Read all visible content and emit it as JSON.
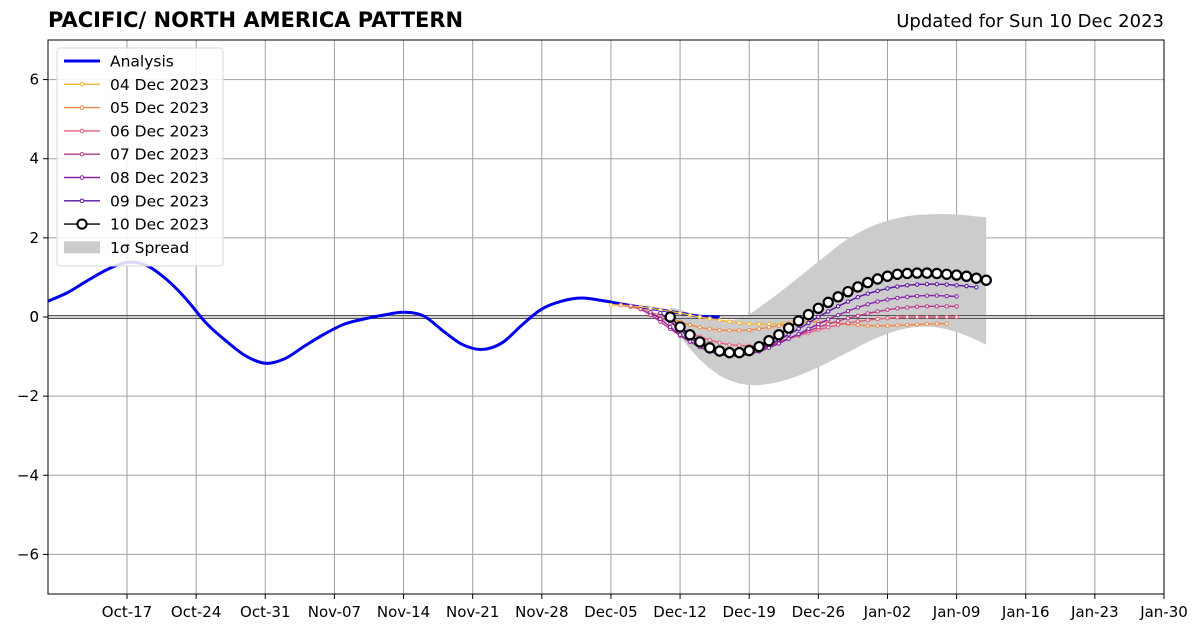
{
  "title": "PACIFIC/ NORTH AMERICA PATTERN",
  "updated": "Updated for Sun 10 Dec 2023",
  "chart_data": {
    "type": "line",
    "title": "PACIFIC/ NORTH AMERICA PATTERN",
    "subtitle": "Updated for Sun 10 Dec 2023",
    "xlabel": "",
    "ylabel": "",
    "xlim": [
      "2023-10-09",
      "2024-01-30"
    ],
    "ylim": [
      -7,
      7
    ],
    "x_ticks": [
      "Oct-17",
      "Oct-24",
      "Oct-31",
      "Nov-07",
      "Nov-14",
      "Nov-21",
      "Nov-28",
      "Dec-05",
      "Dec-12",
      "Dec-19",
      "Dec-26",
      "Jan-02",
      "Jan-09",
      "Jan-16",
      "Jan-23",
      "Jan-30"
    ],
    "y_ticks": [
      6,
      4,
      2,
      0,
      -2,
      -4,
      -6
    ],
    "y_tick_labels": [
      "6",
      "4",
      "2",
      "0",
      "−2",
      "−4",
      "−6"
    ],
    "grid": true,
    "legend_position": "top-left",
    "colors": {
      "analysis": "#0000ee",
      "spread": "#cccccc",
      "zero_line": "#555555",
      "grid": "#a0a0a0"
    },
    "analysis": {
      "name": "Analysis",
      "color": "#0000ee",
      "points": [
        [
          "2023-10-09",
          0.4
        ],
        [
          "2023-10-11",
          0.62
        ],
        [
          "2023-10-13",
          0.92
        ],
        [
          "2023-10-15",
          1.2
        ],
        [
          "2023-10-17",
          1.38
        ],
        [
          "2023-10-19",
          1.3
        ],
        [
          "2023-10-21",
          0.95
        ],
        [
          "2023-10-23",
          0.45
        ],
        [
          "2023-10-25",
          -0.15
        ],
        [
          "2023-10-27",
          -0.6
        ],
        [
          "2023-10-29",
          -0.98
        ],
        [
          "2023-10-31",
          -1.17
        ],
        [
          "2023-11-02",
          -1.05
        ],
        [
          "2023-11-04",
          -0.73
        ],
        [
          "2023-11-06",
          -0.43
        ],
        [
          "2023-11-08",
          -0.18
        ],
        [
          "2023-11-10",
          -0.05
        ],
        [
          "2023-11-12",
          0.05
        ],
        [
          "2023-11-14",
          0.12
        ],
        [
          "2023-11-16",
          0.03
        ],
        [
          "2023-11-18",
          -0.35
        ],
        [
          "2023-11-20",
          -0.7
        ],
        [
          "2023-11-22",
          -0.82
        ],
        [
          "2023-11-24",
          -0.65
        ],
        [
          "2023-11-26",
          -0.2
        ],
        [
          "2023-11-28",
          0.2
        ],
        [
          "2023-11-30",
          0.4
        ],
        [
          "2023-12-02",
          0.48
        ],
        [
          "2023-12-04",
          0.42
        ],
        [
          "2023-12-06",
          0.33
        ],
        [
          "2023-12-08",
          0.25
        ],
        [
          "2023-12-10",
          0.18
        ],
        [
          "2023-12-12",
          0.1
        ],
        [
          "2023-12-14",
          0.02
        ],
        [
          "2023-12-16",
          0.0
        ]
      ]
    },
    "forecasts": [
      {
        "name": "04 Dec 2023",
        "color": "#f5b83d",
        "marker": "small",
        "start": "2023-12-05",
        "values": [
          0.3,
          0.3,
          0.28,
          0.25,
          0.22,
          0.18,
          0.14,
          0.1,
          0.05,
          0.0,
          -0.04,
          -0.08,
          -0.12,
          -0.15,
          -0.17,
          -0.18,
          -0.18,
          -0.17,
          -0.15
        ]
      },
      {
        "name": "05 Dec 2023",
        "color": "#f08a4b",
        "marker": "small",
        "start": "2023-12-06",
        "values": [
          0.3,
          0.25,
          0.2,
          0.12,
          0.05,
          -0.04,
          -0.12,
          -0.2,
          -0.26,
          -0.3,
          -0.33,
          -0.34,
          -0.34,
          -0.33,
          -0.3,
          -0.26,
          -0.22,
          -0.18,
          -0.15,
          -0.13,
          -0.12,
          -0.13,
          -0.15,
          -0.18,
          -0.2,
          -0.22,
          -0.22,
          -0.22,
          -0.21,
          -0.2,
          -0.19,
          -0.18,
          -0.17,
          -0.17
        ]
      },
      {
        "name": "06 Dec 2023",
        "color": "#e0607a",
        "marker": "small",
        "start": "2023-12-07",
        "values": [
          0.28,
          0.2,
          0.1,
          -0.02,
          -0.15,
          -0.28,
          -0.4,
          -0.5,
          -0.58,
          -0.65,
          -0.7,
          -0.72,
          -0.73,
          -0.72,
          -0.68,
          -0.62,
          -0.55,
          -0.47,
          -0.4,
          -0.32,
          -0.26,
          -0.2,
          -0.15,
          -0.11,
          -0.08,
          -0.05,
          -0.03,
          -0.01,
          0.0,
          0.0,
          0.0,
          0.0,
          0.0,
          0.0
        ]
      },
      {
        "name": "07 Dec 2023",
        "color": "#b83a8a",
        "marker": "small",
        "start": "2023-12-08",
        "values": [
          0.2,
          0.05,
          -0.12,
          -0.3,
          -0.47,
          -0.62,
          -0.74,
          -0.83,
          -0.89,
          -0.92,
          -0.92,
          -0.88,
          -0.82,
          -0.74,
          -0.64,
          -0.54,
          -0.44,
          -0.35,
          -0.26,
          -0.18,
          -0.1,
          -0.03,
          0.03,
          0.09,
          0.14,
          0.18,
          0.22,
          0.24,
          0.26,
          0.27,
          0.27,
          0.27,
          0.27
        ]
      },
      {
        "name": "08 Dec 2023",
        "color": "#8a20a8",
        "marker": "small",
        "start": "2023-12-09",
        "values": [
          0.12,
          -0.05,
          -0.25,
          -0.45,
          -0.62,
          -0.76,
          -0.87,
          -0.95,
          -0.98,
          -0.98,
          -0.94,
          -0.87,
          -0.78,
          -0.67,
          -0.55,
          -0.43,
          -0.3,
          -0.18,
          -0.06,
          0.05,
          0.15,
          0.24,
          0.32,
          0.39,
          0.44,
          0.48,
          0.51,
          0.53,
          0.54,
          0.54,
          0.53,
          0.52
        ]
      },
      {
        "name": "09 Dec 2023",
        "color": "#5a12a0",
        "marker": "small",
        "start": "2023-12-10",
        "values": [
          0.1,
          -0.1,
          -0.32,
          -0.52,
          -0.68,
          -0.8,
          -0.88,
          -0.92,
          -0.92,
          -0.88,
          -0.8,
          -0.7,
          -0.58,
          -0.44,
          -0.3,
          -0.15,
          0.0,
          0.14,
          0.27,
          0.39,
          0.5,
          0.59,
          0.66,
          0.72,
          0.77,
          0.8,
          0.82,
          0.83,
          0.83,
          0.82,
          0.8,
          0.78,
          0.75
        ]
      },
      {
        "name": "10 Dec 2023",
        "color": "#000000",
        "marker": "large",
        "start": "2023-12-11",
        "values": [
          0.0,
          -0.25,
          -0.45,
          -0.63,
          -0.78,
          -0.86,
          -0.9,
          -0.9,
          -0.85,
          -0.75,
          -0.6,
          -0.45,
          -0.28,
          -0.1,
          0.06,
          0.22,
          0.37,
          0.51,
          0.64,
          0.76,
          0.87,
          0.96,
          1.03,
          1.08,
          1.1,
          1.11,
          1.11,
          1.1,
          1.08,
          1.06,
          1.03,
          0.98,
          0.93
        ]
      }
    ],
    "spread": {
      "name": "1σ Spread",
      "color": "#cccccc",
      "start": "2023-12-11",
      "upper": [
        0.25,
        0.18,
        0.1,
        0.02,
        -0.04,
        -0.08,
        -0.08,
        -0.05,
        0.06,
        0.24,
        0.42,
        0.6,
        0.8,
        1.0,
        1.2,
        1.4,
        1.6,
        1.8,
        1.98,
        2.12,
        2.25,
        2.35,
        2.43,
        2.5,
        2.55,
        2.58,
        2.59,
        2.6,
        2.6,
        2.59,
        2.57,
        2.54,
        2.52
      ],
      "lower": [
        -0.12,
        -0.5,
        -0.8,
        -1.08,
        -1.3,
        -1.48,
        -1.6,
        -1.68,
        -1.72,
        -1.72,
        -1.69,
        -1.64,
        -1.57,
        -1.48,
        -1.38,
        -1.27,
        -1.15,
        -1.02,
        -0.89,
        -0.76,
        -0.63,
        -0.52,
        -0.42,
        -0.34,
        -0.28,
        -0.25,
        -0.24,
        -0.26,
        -0.31,
        -0.38,
        -0.47,
        -0.58,
        -0.7
      ]
    }
  }
}
